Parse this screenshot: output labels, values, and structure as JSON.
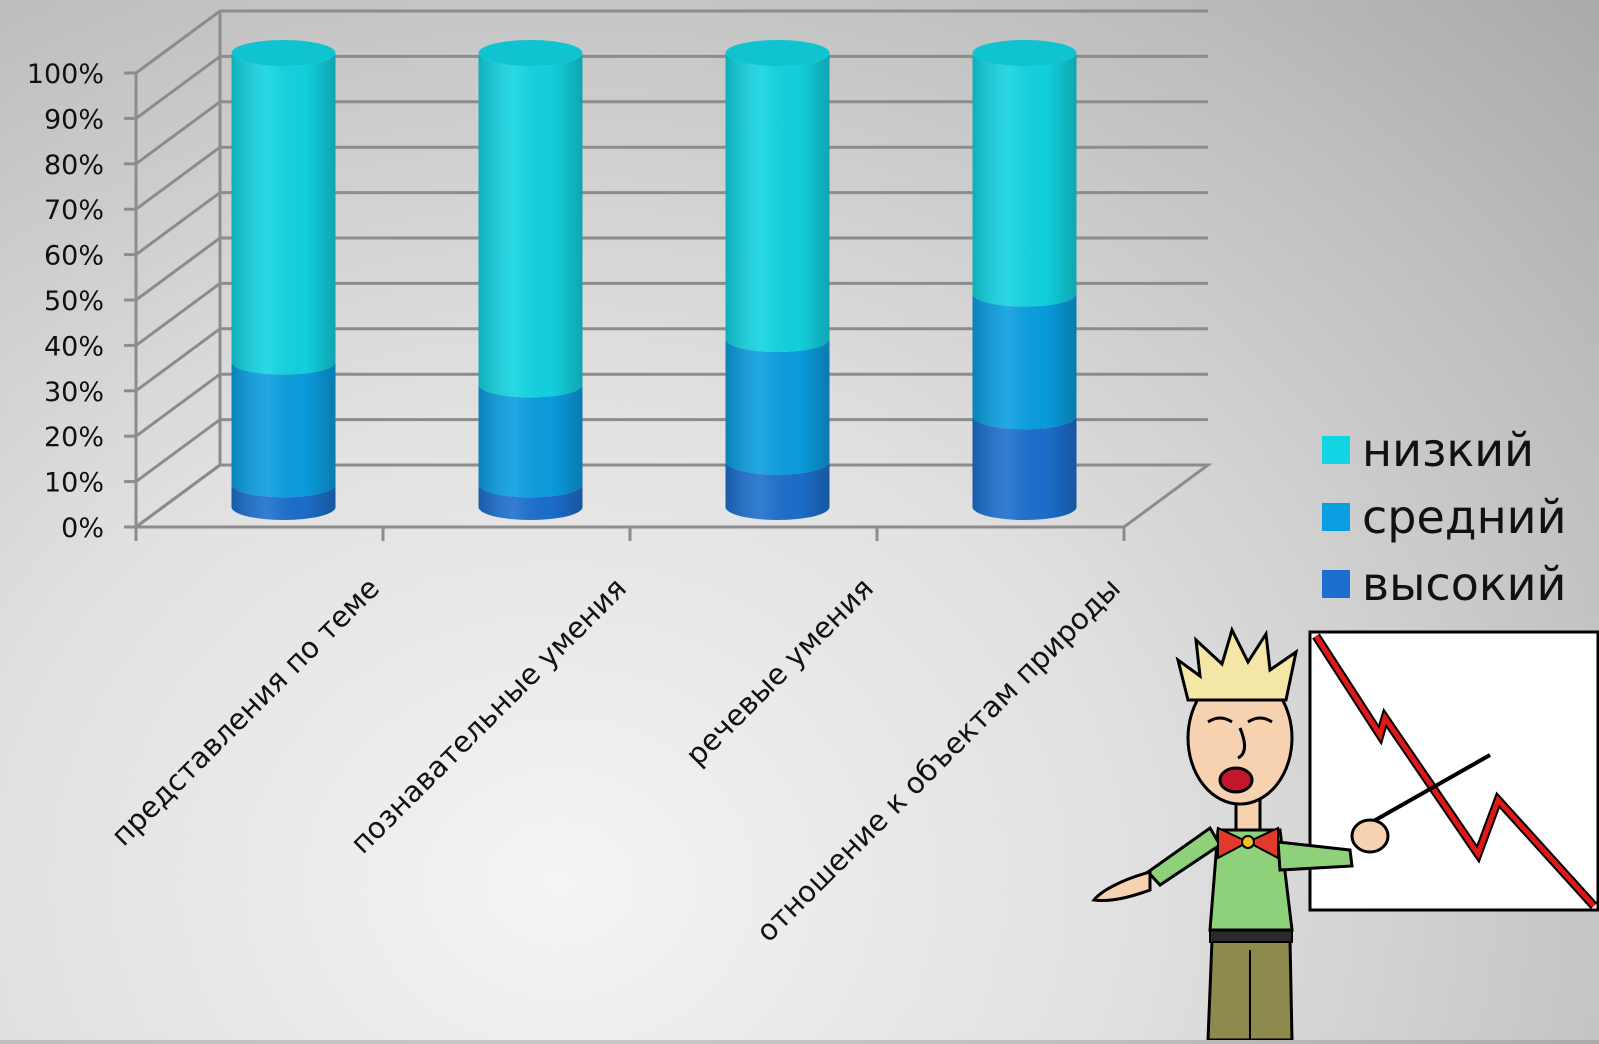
{
  "chart_data": {
    "type": "bar",
    "stacked": true,
    "style": "3d-cylinder",
    "categories": [
      "представления по теме",
      "познавательные умения",
      "речевые умения",
      "отношение к объектам природы"
    ],
    "series": [
      {
        "name": "высокий",
        "values": [
          5,
          5,
          10,
          20
        ],
        "color": "#1c6fce"
      },
      {
        "name": "средний",
        "values": [
          27,
          22,
          27,
          27
        ],
        "color": "#0a9ee0"
      },
      {
        "name": "низкий",
        "values": [
          68,
          73,
          63,
          53
        ],
        "color": "#12d4e2"
      }
    ],
    "yticks": [
      "0%",
      "10%",
      "20%",
      "30%",
      "40%",
      "50%",
      "60%",
      "70%",
      "80%",
      "90%",
      "100%"
    ],
    "ylim": [
      0,
      100
    ],
    "grid": true,
    "legend": "right"
  },
  "colors": {
    "grid": "#8c8c8c",
    "axis": "#8c8c8c"
  },
  "illustration": {
    "icon": "presenter-with-declining-chart-icon"
  }
}
